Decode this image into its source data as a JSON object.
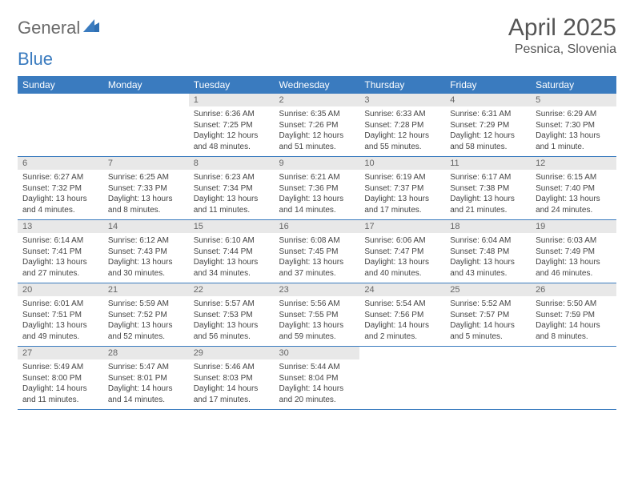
{
  "brand": {
    "part1": "General",
    "part2": "Blue"
  },
  "title": "April 2025",
  "location": "Pesnica, Slovenia",
  "colors": {
    "header_bg": "#3a7bbf",
    "header_text": "#ffffff",
    "daynum_bg": "#e8e8e8",
    "daynum_text": "#666666",
    "body_text": "#444444",
    "rule": "#3a7bbf",
    "logo_gray": "#6a6a6a",
    "logo_blue": "#3a7bbf"
  },
  "weekdays": [
    "Sunday",
    "Monday",
    "Tuesday",
    "Wednesday",
    "Thursday",
    "Friday",
    "Saturday"
  ],
  "weeks": [
    [
      {
        "empty": true
      },
      {
        "empty": true
      },
      {
        "n": "1",
        "sunrise": "6:36 AM",
        "sunset": "7:25 PM",
        "dl1": "Daylight: 12 hours",
        "dl2": "and 48 minutes."
      },
      {
        "n": "2",
        "sunrise": "6:35 AM",
        "sunset": "7:26 PM",
        "dl1": "Daylight: 12 hours",
        "dl2": "and 51 minutes."
      },
      {
        "n": "3",
        "sunrise": "6:33 AM",
        "sunset": "7:28 PM",
        "dl1": "Daylight: 12 hours",
        "dl2": "and 55 minutes."
      },
      {
        "n": "4",
        "sunrise": "6:31 AM",
        "sunset": "7:29 PM",
        "dl1": "Daylight: 12 hours",
        "dl2": "and 58 minutes."
      },
      {
        "n": "5",
        "sunrise": "6:29 AM",
        "sunset": "7:30 PM",
        "dl1": "Daylight: 13 hours",
        "dl2": "and 1 minute."
      }
    ],
    [
      {
        "n": "6",
        "sunrise": "6:27 AM",
        "sunset": "7:32 PM",
        "dl1": "Daylight: 13 hours",
        "dl2": "and 4 minutes."
      },
      {
        "n": "7",
        "sunrise": "6:25 AM",
        "sunset": "7:33 PM",
        "dl1": "Daylight: 13 hours",
        "dl2": "and 8 minutes."
      },
      {
        "n": "8",
        "sunrise": "6:23 AM",
        "sunset": "7:34 PM",
        "dl1": "Daylight: 13 hours",
        "dl2": "and 11 minutes."
      },
      {
        "n": "9",
        "sunrise": "6:21 AM",
        "sunset": "7:36 PM",
        "dl1": "Daylight: 13 hours",
        "dl2": "and 14 minutes."
      },
      {
        "n": "10",
        "sunrise": "6:19 AM",
        "sunset": "7:37 PM",
        "dl1": "Daylight: 13 hours",
        "dl2": "and 17 minutes."
      },
      {
        "n": "11",
        "sunrise": "6:17 AM",
        "sunset": "7:38 PM",
        "dl1": "Daylight: 13 hours",
        "dl2": "and 21 minutes."
      },
      {
        "n": "12",
        "sunrise": "6:15 AM",
        "sunset": "7:40 PM",
        "dl1": "Daylight: 13 hours",
        "dl2": "and 24 minutes."
      }
    ],
    [
      {
        "n": "13",
        "sunrise": "6:14 AM",
        "sunset": "7:41 PM",
        "dl1": "Daylight: 13 hours",
        "dl2": "and 27 minutes."
      },
      {
        "n": "14",
        "sunrise": "6:12 AM",
        "sunset": "7:43 PM",
        "dl1": "Daylight: 13 hours",
        "dl2": "and 30 minutes."
      },
      {
        "n": "15",
        "sunrise": "6:10 AM",
        "sunset": "7:44 PM",
        "dl1": "Daylight: 13 hours",
        "dl2": "and 34 minutes."
      },
      {
        "n": "16",
        "sunrise": "6:08 AM",
        "sunset": "7:45 PM",
        "dl1": "Daylight: 13 hours",
        "dl2": "and 37 minutes."
      },
      {
        "n": "17",
        "sunrise": "6:06 AM",
        "sunset": "7:47 PM",
        "dl1": "Daylight: 13 hours",
        "dl2": "and 40 minutes."
      },
      {
        "n": "18",
        "sunrise": "6:04 AM",
        "sunset": "7:48 PM",
        "dl1": "Daylight: 13 hours",
        "dl2": "and 43 minutes."
      },
      {
        "n": "19",
        "sunrise": "6:03 AM",
        "sunset": "7:49 PM",
        "dl1": "Daylight: 13 hours",
        "dl2": "and 46 minutes."
      }
    ],
    [
      {
        "n": "20",
        "sunrise": "6:01 AM",
        "sunset": "7:51 PM",
        "dl1": "Daylight: 13 hours",
        "dl2": "and 49 minutes."
      },
      {
        "n": "21",
        "sunrise": "5:59 AM",
        "sunset": "7:52 PM",
        "dl1": "Daylight: 13 hours",
        "dl2": "and 52 minutes."
      },
      {
        "n": "22",
        "sunrise": "5:57 AM",
        "sunset": "7:53 PM",
        "dl1": "Daylight: 13 hours",
        "dl2": "and 56 minutes."
      },
      {
        "n": "23",
        "sunrise": "5:56 AM",
        "sunset": "7:55 PM",
        "dl1": "Daylight: 13 hours",
        "dl2": "and 59 minutes."
      },
      {
        "n": "24",
        "sunrise": "5:54 AM",
        "sunset": "7:56 PM",
        "dl1": "Daylight: 14 hours",
        "dl2": "and 2 minutes."
      },
      {
        "n": "25",
        "sunrise": "5:52 AM",
        "sunset": "7:57 PM",
        "dl1": "Daylight: 14 hours",
        "dl2": "and 5 minutes."
      },
      {
        "n": "26",
        "sunrise": "5:50 AM",
        "sunset": "7:59 PM",
        "dl1": "Daylight: 14 hours",
        "dl2": "and 8 minutes."
      }
    ],
    [
      {
        "n": "27",
        "sunrise": "5:49 AM",
        "sunset": "8:00 PM",
        "dl1": "Daylight: 14 hours",
        "dl2": "and 11 minutes."
      },
      {
        "n": "28",
        "sunrise": "5:47 AM",
        "sunset": "8:01 PM",
        "dl1": "Daylight: 14 hours",
        "dl2": "and 14 minutes."
      },
      {
        "n": "29",
        "sunrise": "5:46 AM",
        "sunset": "8:03 PM",
        "dl1": "Daylight: 14 hours",
        "dl2": "and 17 minutes."
      },
      {
        "n": "30",
        "sunrise": "5:44 AM",
        "sunset": "8:04 PM",
        "dl1": "Daylight: 14 hours",
        "dl2": "and 20 minutes."
      },
      {
        "empty": true
      },
      {
        "empty": true
      },
      {
        "empty": true
      }
    ]
  ]
}
